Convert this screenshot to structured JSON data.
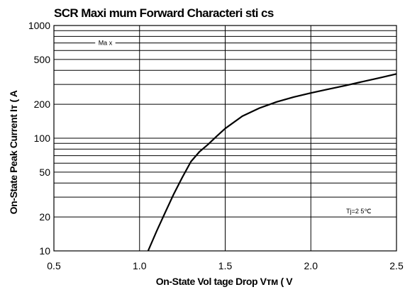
{
  "chart_data": {
    "type": "line",
    "title": "SCR Maxi mum Forward Characteri sti cs",
    "xlabel": "On-State Vol tage Drop Vᴛᴍ ( V",
    "ylabel": "On-State Peak Current Iᴛ ( A",
    "xlim": [
      0.5,
      2.5
    ],
    "ylim": [
      10,
      1000
    ],
    "y_scale": "log",
    "x_ticks": [
      0.5,
      1.0,
      1.5,
      2.0,
      2.5
    ],
    "x_tick_labels": [
      "0.5",
      "1.0",
      "1.5",
      "2.0",
      "2.5"
    ],
    "y_ticks": [
      10,
      20,
      50,
      100,
      200,
      500,
      1000
    ],
    "y_tick_labels": [
      "10",
      "20",
      "50",
      "100",
      "200",
      "500",
      "1000"
    ],
    "y_gridlines": [
      10,
      20,
      30,
      40,
      50,
      60,
      70,
      80,
      90,
      100,
      200,
      300,
      400,
      500,
      600,
      700,
      800,
      900,
      1000
    ],
    "x_gridlines": [
      0.5,
      1.0,
      1.5,
      2.0,
      2.5
    ],
    "grid": true,
    "series": [
      {
        "name": "Max",
        "color": "#000000",
        "x": [
          1.05,
          1.1,
          1.15,
          1.2,
          1.25,
          1.3,
          1.35,
          1.4,
          1.45,
          1.5,
          1.6,
          1.7,
          1.8,
          1.9,
          2.0,
          2.1,
          2.2,
          2.3,
          2.4,
          2.5
        ],
        "y": [
          10,
          15,
          22,
          32,
          45,
          62,
          76,
          88,
          104,
          122,
          157,
          185,
          210,
          232,
          252,
          272,
          293,
          317,
          343,
          372
        ]
      }
    ],
    "annotations": [
      {
        "text": "Ma x",
        "x": 0.8,
        "y": 700
      },
      {
        "text": "Tj=2 5℃",
        "x": 2.28,
        "y": 22.5
      }
    ]
  }
}
